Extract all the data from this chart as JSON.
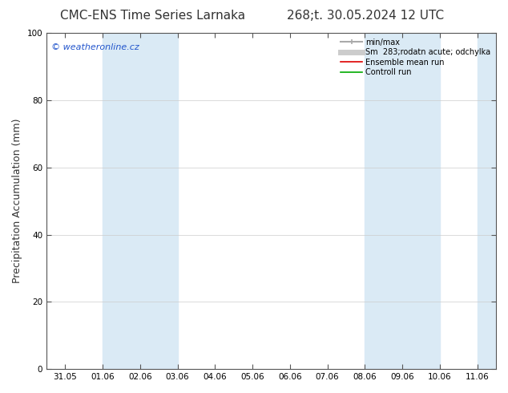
{
  "title_left": "CMC-ENS Time Series Larnaka",
  "title_right": "268;t. 30.05.2024 12 UTC",
  "ylabel": "Precipitation Accumulation (mm)",
  "watermark": "© weatheronline.cz",
  "ylim": [
    0,
    100
  ],
  "y_ticks": [
    0,
    20,
    40,
    60,
    80,
    100
  ],
  "x_labels": [
    "31.05",
    "01.06",
    "02.06",
    "03.06",
    "04.06",
    "05.06",
    "06.06",
    "07.06",
    "08.06",
    "09.06",
    "10.06",
    "11.06"
  ],
  "x_tick_positions": [
    0,
    1,
    2,
    3,
    4,
    5,
    6,
    7,
    8,
    9,
    10,
    11
  ],
  "shaded_bands": [
    {
      "x_start": 1,
      "x_end": 3,
      "color": "#daeaf5"
    },
    {
      "x_start": 8,
      "x_end": 10,
      "color": "#daeaf5"
    },
    {
      "x_start": 11,
      "x_end": 11.5,
      "color": "#daeaf5"
    }
  ],
  "legend_entries": [
    {
      "label": "min/max",
      "color": "#aaaaaa",
      "linewidth": 1.5
    },
    {
      "label": "Sm  283;rodatn acute; odchylka",
      "color": "#cccccc",
      "linewidth": 5
    },
    {
      "label": "Ensemble mean run",
      "color": "#dd0000",
      "linewidth": 1.2
    },
    {
      "label": "Controll run",
      "color": "#00aa00",
      "linewidth": 1.2
    }
  ],
  "bg_color": "#ffffff",
  "plot_bg_color": "#ffffff",
  "spine_color": "#555555",
  "grid_color": "#cccccc",
  "title_fontsize": 11,
  "tick_fontsize": 7.5,
  "ylabel_fontsize": 9,
  "watermark_color": "#2255cc",
  "title_color": "#333333",
  "xlim": [
    -0.5,
    11.5
  ]
}
